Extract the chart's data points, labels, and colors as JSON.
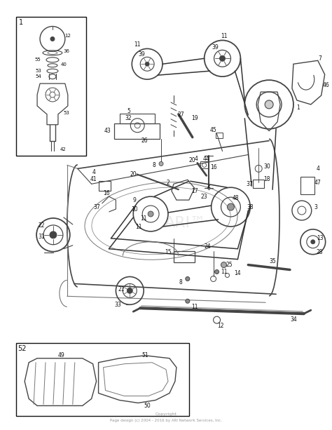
{
  "background_color": "#ffffff",
  "copyright_line1": "Copyright",
  "copyright_line2": "Page design (c) 2004 - 2016 by ARI Network Services, Inc.",
  "box1_label": "1",
  "box2_label": "52",
  "watermark": "ARI™"
}
